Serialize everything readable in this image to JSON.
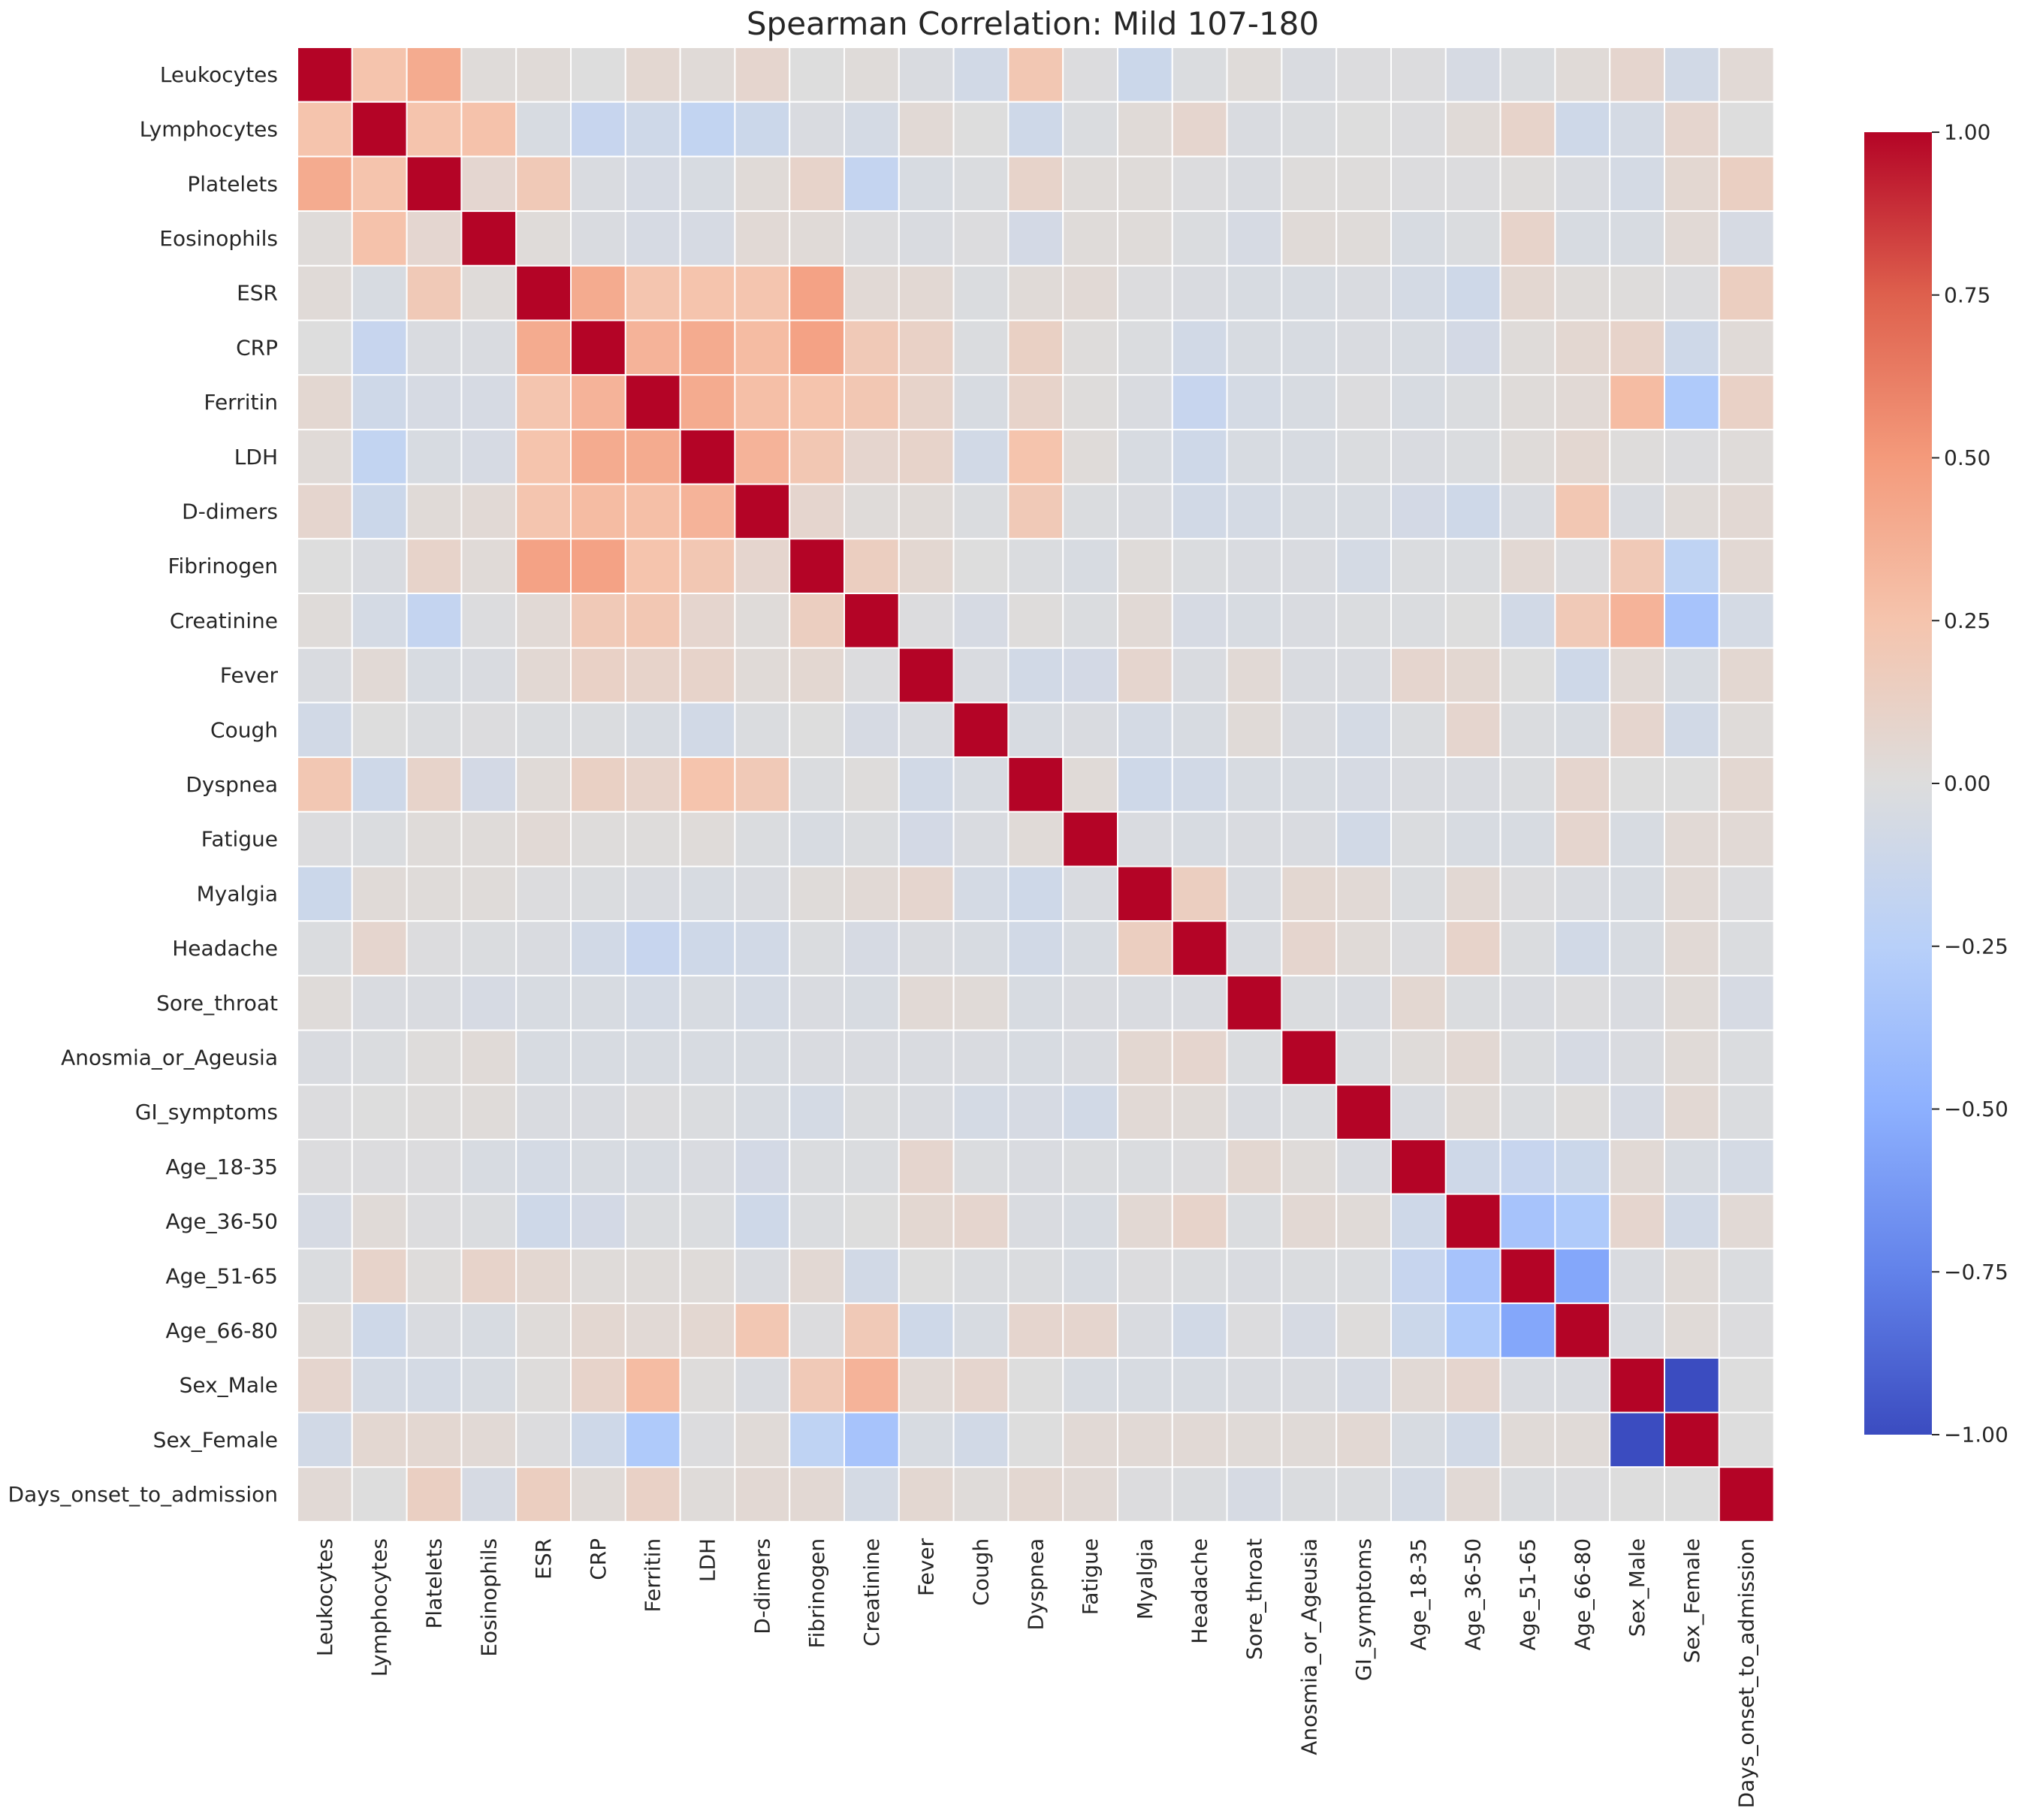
{
  "chart_data": {
    "type": "heatmap",
    "title": "Spearman Correlation: Mild 107-180",
    "xlabel": "",
    "ylabel": "",
    "labels": [
      "Leukocytes",
      "Lymphocytes",
      "Platelets",
      "Eosinophils",
      "ESR",
      "CRP",
      "Ferritin",
      "LDH",
      "D-dimers",
      "Fibrinogen",
      "Creatinine",
      "Fever",
      "Cough",
      "Dyspnea",
      "Fatigue",
      "Myalgia",
      "Headache",
      "Sore_throat",
      "Anosmia_or_Ageusia",
      "GI_symptoms",
      "Age_18-35",
      "Age_36-50",
      "Age_51-65",
      "Age_66-80",
      "Sex_Male",
      "Sex_Female",
      "Days_onset_to_admission"
    ],
    "colorscale": "coolwarm",
    "vmin": -1.0,
    "vmax": 1.0,
    "colorbar_ticks": [
      1.0,
      0.75,
      0.5,
      0.25,
      0.0,
      -0.25,
      -0.5,
      -0.75,
      -1.0
    ],
    "colorbar_tick_labels": [
      "1.00",
      "0.75",
      "0.50",
      "0.25",
      "0.00",
      "−0.25",
      "−0.50",
      "−0.75",
      "−1.00"
    ],
    "grid": true,
    "values": [
      [
        1,
        0.25,
        0.4,
        0.02,
        0.03,
        0,
        0.06,
        0.03,
        0.08,
        0,
        0.02,
        -0.03,
        -0.08,
        0.22,
        -0.01,
        -0.12,
        -0.02,
        0.02,
        -0.03,
        -0.01,
        -0.01,
        -0.05,
        -0.02,
        0.03,
        0.08,
        -0.08,
        0.04
      ],
      [
        0.25,
        1,
        0.25,
        0.26,
        -0.04,
        -0.15,
        -0.1,
        -0.18,
        -0.12,
        -0.03,
        -0.06,
        0.04,
        0,
        -0.1,
        -0.02,
        0.03,
        0.08,
        -0.03,
        -0.02,
        0,
        -0.01,
        0.03,
        0.1,
        -0.1,
        -0.06,
        0.08,
        0
      ],
      [
        0.4,
        0.25,
        1,
        0.07,
        0.2,
        -0.03,
        -0.05,
        -0.04,
        0.03,
        0.1,
        -0.17,
        -0.04,
        -0.02,
        0.1,
        0.02,
        0.02,
        -0.01,
        -0.03,
        0.01,
        0.01,
        -0.01,
        -0.01,
        0.01,
        -0.03,
        -0.06,
        0.06,
        0.14
      ],
      [
        0.02,
        0.26,
        0.07,
        1,
        0.02,
        -0.03,
        -0.05,
        -0.05,
        0.04,
        0.03,
        -0.01,
        -0.03,
        -0.01,
        -0.07,
        0.02,
        0.02,
        -0.02,
        -0.05,
        0.03,
        0.02,
        -0.04,
        -0.02,
        0.1,
        -0.04,
        -0.04,
        0.04,
        -0.05
      ],
      [
        0.03,
        -0.04,
        0.2,
        0.02,
        1,
        0.4,
        0.24,
        0.25,
        0.24,
        0.45,
        0.04,
        0.05,
        -0.02,
        0.03,
        0.04,
        -0.01,
        -0.03,
        -0.04,
        -0.04,
        -0.03,
        -0.06,
        -0.1,
        0.06,
        0.02,
        0.01,
        -0.01,
        0.15
      ],
      [
        0,
        -0.15,
        -0.03,
        -0.03,
        0.4,
        1,
        0.35,
        0.4,
        0.3,
        0.45,
        0.2,
        0.12,
        -0.02,
        0.13,
        0.01,
        -0.02,
        -0.08,
        -0.04,
        -0.04,
        -0.03,
        -0.04,
        -0.07,
        0.02,
        0.06,
        0.1,
        -0.1,
        0.03
      ],
      [
        0.06,
        -0.1,
        -0.05,
        -0.05,
        0.24,
        0.35,
        1,
        0.4,
        0.28,
        0.25,
        0.22,
        0.1,
        -0.04,
        0.1,
        0.01,
        -0.03,
        -0.15,
        -0.06,
        -0.04,
        -0.01,
        -0.04,
        -0.02,
        0.02,
        0.04,
        0.3,
        -0.3,
        0.12
      ],
      [
        0.03,
        -0.18,
        -0.04,
        -0.05,
        0.25,
        0.4,
        0.4,
        1,
        0.35,
        0.22,
        0.08,
        0.1,
        -0.08,
        0.25,
        0.02,
        -0.04,
        -0.1,
        -0.04,
        -0.04,
        -0.02,
        -0.03,
        -0.02,
        0.02,
        0.06,
        0.01,
        -0.01,
        0.02
      ],
      [
        0.08,
        -0.12,
        0.03,
        0.04,
        0.24,
        0.3,
        0.28,
        0.35,
        1,
        0.08,
        0.02,
        0.03,
        -0.02,
        0.2,
        -0.02,
        -0.03,
        -0.08,
        -0.06,
        -0.04,
        -0.04,
        -0.07,
        -0.1,
        -0.03,
        0.22,
        -0.03,
        0.03,
        0.05
      ],
      [
        0,
        -0.03,
        0.1,
        0.03,
        0.45,
        0.45,
        0.25,
        0.22,
        0.08,
        1,
        0.15,
        0.06,
        0,
        -0.02,
        -0.04,
        0.02,
        -0.02,
        -0.03,
        -0.03,
        -0.06,
        -0.02,
        -0.02,
        0.05,
        -0.01,
        0.2,
        -0.2,
        0.05
      ],
      [
        0.02,
        -0.06,
        -0.17,
        -0.01,
        0.04,
        0.2,
        0.22,
        0.08,
        0.02,
        0.15,
        1,
        -0.01,
        -0.05,
        0.01,
        -0.02,
        0.04,
        -0.05,
        -0.04,
        -0.03,
        -0.02,
        -0.02,
        0,
        -0.08,
        0.2,
        0.35,
        -0.35,
        -0.06
      ],
      [
        -0.03,
        0.04,
        -0.04,
        -0.03,
        0.05,
        0.12,
        0.1,
        0.1,
        0.03,
        0.06,
        -0.01,
        1,
        -0.03,
        -0.08,
        -0.07,
        0.08,
        -0.03,
        0.04,
        -0.03,
        -0.03,
        0.08,
        0.06,
        0,
        -0.1,
        0.04,
        -0.04,
        0.06
      ],
      [
        -0.08,
        0,
        -0.02,
        -0.01,
        -0.02,
        -0.02,
        -0.04,
        -0.08,
        -0.02,
        0,
        -0.05,
        -0.03,
        1,
        -0.04,
        -0.03,
        -0.06,
        -0.04,
        0.03,
        -0.03,
        -0.06,
        -0.02,
        0.08,
        -0.02,
        -0.04,
        0.08,
        -0.08,
        0.02
      ],
      [
        0.22,
        -0.1,
        0.1,
        -0.07,
        0.03,
        0.13,
        0.1,
        0.25,
        0.2,
        -0.02,
        0.01,
        -0.08,
        -0.04,
        1,
        0.03,
        -0.1,
        -0.08,
        -0.04,
        -0.04,
        -0.05,
        -0.03,
        -0.03,
        -0.02,
        0.08,
        0,
        0,
        0.06
      ],
      [
        -0.01,
        -0.02,
        0.02,
        0.02,
        0.04,
        0.01,
        0.01,
        0.02,
        -0.02,
        -0.04,
        -0.02,
        -0.07,
        -0.03,
        0.03,
        1,
        -0.03,
        -0.04,
        -0.03,
        -0.03,
        -0.08,
        -0.02,
        -0.04,
        -0.04,
        0.08,
        -0.04,
        0.04,
        0.04
      ],
      [
        -0.12,
        0.03,
        0.02,
        0.02,
        -0.01,
        -0.02,
        -0.03,
        -0.04,
        -0.03,
        0.02,
        0.04,
        0.08,
        -0.06,
        -0.1,
        -0.03,
        1,
        0.15,
        -0.03,
        0.06,
        0.04,
        -0.02,
        0.05,
        -0.01,
        -0.03,
        -0.04,
        0.04,
        -0.01
      ],
      [
        -0.02,
        0.08,
        -0.01,
        -0.02,
        -0.03,
        -0.08,
        -0.15,
        -0.1,
        -0.08,
        -0.02,
        -0.05,
        -0.03,
        -0.04,
        -0.08,
        -0.04,
        0.15,
        1,
        -0.03,
        0.08,
        0.03,
        -0.01,
        0.1,
        -0.02,
        -0.08,
        -0.04,
        0.04,
        -0.02
      ],
      [
        0.02,
        -0.03,
        -0.03,
        -0.05,
        -0.04,
        -0.04,
        -0.06,
        -0.04,
        -0.06,
        -0.03,
        -0.04,
        0.04,
        0.03,
        -0.04,
        -0.03,
        -0.03,
        -0.03,
        1,
        -0.02,
        -0.03,
        0.06,
        -0.02,
        -0.03,
        -0.01,
        -0.03,
        0.03,
        -0.05
      ],
      [
        -0.03,
        -0.02,
        0.01,
        0.03,
        -0.04,
        -0.04,
        -0.04,
        -0.04,
        -0.04,
        -0.03,
        -0.03,
        -0.03,
        -0.03,
        -0.04,
        -0.03,
        0.06,
        0.08,
        -0.02,
        1,
        -0.02,
        0.02,
        0.05,
        -0.02,
        -0.05,
        -0.03,
        0.03,
        -0.02
      ],
      [
        -0.01,
        0,
        0.01,
        0.02,
        -0.03,
        -0.03,
        -0.01,
        -0.02,
        -0.04,
        -0.06,
        -0.02,
        -0.03,
        -0.06,
        -0.05,
        -0.08,
        0.04,
        0.03,
        -0.03,
        -0.02,
        1,
        -0.03,
        0.03,
        -0.02,
        0.01,
        -0.05,
        0.05,
        -0.02
      ],
      [
        -0.01,
        -0.01,
        -0.01,
        -0.04,
        -0.06,
        -0.04,
        -0.04,
        -0.03,
        -0.07,
        -0.02,
        -0.02,
        0.08,
        -0.02,
        -0.03,
        -0.02,
        -0.02,
        -0.01,
        0.06,
        0.02,
        -0.03,
        1,
        -0.1,
        -0.15,
        -0.12,
        0.04,
        -0.04,
        -0.06
      ],
      [
        -0.05,
        0.03,
        -0.01,
        -0.02,
        -0.1,
        -0.07,
        -0.02,
        -0.02,
        -0.1,
        -0.02,
        0,
        0.06,
        0.08,
        -0.03,
        -0.04,
        0.05,
        0.1,
        -0.02,
        0.05,
        0.03,
        -0.1,
        1,
        -0.35,
        -0.3,
        0.08,
        -0.08,
        0.04
      ],
      [
        -0.02,
        0.1,
        0.01,
        0.1,
        0.06,
        0.02,
        0.02,
        0.02,
        -0.03,
        0.05,
        -0.08,
        0,
        -0.02,
        -0.02,
        -0.04,
        -0.01,
        -0.02,
        -0.03,
        -0.02,
        -0.02,
        -0.15,
        -0.35,
        1,
        -0.55,
        -0.03,
        0.03,
        -0.02
      ],
      [
        0.03,
        -0.1,
        -0.03,
        -0.04,
        0.02,
        0.06,
        0.04,
        0.06,
        0.22,
        -0.01,
        0.2,
        -0.1,
        -0.04,
        0.08,
        0.08,
        -0.03,
        -0.08,
        -0.01,
        -0.05,
        0.01,
        -0.12,
        -0.3,
        -0.55,
        1,
        -0.03,
        0.03,
        -0.01
      ],
      [
        0.08,
        -0.06,
        -0.06,
        -0.04,
        0.01,
        0.1,
        0.3,
        0.01,
        -0.03,
        0.2,
        0.35,
        0.04,
        0.08,
        0,
        -0.04,
        -0.04,
        -0.04,
        -0.03,
        -0.03,
        -0.05,
        0.04,
        0.08,
        -0.03,
        -0.03,
        1,
        -1,
        0
      ],
      [
        -0.08,
        0.06,
        0.06,
        0.04,
        -0.01,
        -0.1,
        -0.3,
        -0.01,
        0.03,
        -0.2,
        -0.35,
        -0.04,
        -0.08,
        0,
        0.04,
        0.04,
        0.04,
        0.03,
        0.03,
        0.05,
        -0.04,
        -0.08,
        0.03,
        0.03,
        -1,
        1,
        0
      ],
      [
        0.04,
        0,
        0.14,
        -0.05,
        0.15,
        0.03,
        0.12,
        0.02,
        0.05,
        0.05,
        -0.06,
        0.06,
        0.02,
        0.06,
        0.04,
        -0.01,
        -0.02,
        -0.05,
        -0.02,
        -0.02,
        -0.06,
        0.04,
        -0.02,
        -0.01,
        0,
        0,
        1
      ]
    ]
  }
}
